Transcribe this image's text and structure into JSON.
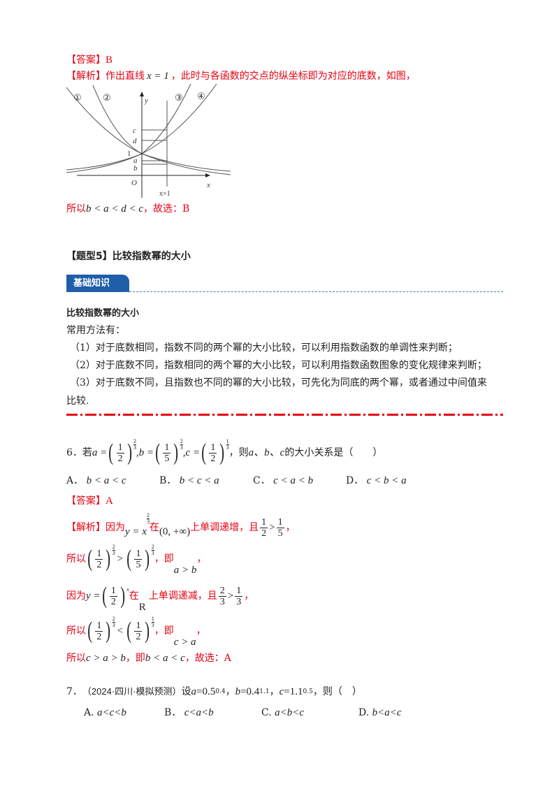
{
  "prev": {
    "answer_label": "【答案】",
    "answer": "B",
    "analysis_label": "【解析】",
    "analysis_pre": "作出直线",
    "line_eq": "x = 1",
    "analysis_post": "，此时与各函数的交点的纵坐标即为对应的底数，如图，",
    "graph": {
      "labels": [
        "①",
        "②",
        "③",
        "④"
      ],
      "y": "y",
      "x": "x",
      "o": "O",
      "one": "1",
      "c": "c",
      "d": "d",
      "a": "a",
      "b": "b",
      "xeq": "x=1"
    },
    "conclusion_pre": "所以",
    "conclusion_math": "b < a < d < c",
    "conclusion_post": "，故选：B"
  },
  "section": {
    "title": "【题型5】比较指数幂的大小",
    "banner": "基础知识"
  },
  "knowledge": {
    "heading": "比较指数幂的大小",
    "intro": "常用方法有：",
    "items": [
      "（1）对于底数相同，指数不同的两个幂的大小比较，可以利用指数函数的单调性来判断；",
      "（2）对于底数不同，指数相同的两个幂的大小比较，可以利用指数函数图象的变化规律来判断；",
      "（3）对于底数不同，且指数也不同的幂的大小比较，可先化为同底的两个幂，或者通过中间值来"
    ],
    "items_cont": "比较."
  },
  "q6": {
    "num": "6．若",
    "a": "a =",
    "b": ",b =",
    "c": ",c =",
    "post": "，则",
    "vars": "a、b、c",
    "post2": "的大小关系是（　　）",
    "options": [
      {
        "label": "A．",
        "text": "b < a < c"
      },
      {
        "label": "B．",
        "text": "b < c < a"
      },
      {
        "label": "C．",
        "text": "c < a < b"
      },
      {
        "label": "D．",
        "text": "c < b < a"
      }
    ],
    "answer_label": "【答案】",
    "answer": "A",
    "l1": {
      "label": "【解析】",
      "t1": "因为",
      "fn": "y = x",
      "t2": "在",
      "interval": "(0, +∞)",
      "t3": "上单调递增，且",
      "gt": ">",
      "end": "，"
    },
    "l2": {
      "t1": "所以",
      "gt": ">",
      "t2": "，即",
      "res": "a > b",
      "end": "，"
    },
    "l3": {
      "t1": "因为",
      "fn": "y =",
      "supx": "x",
      "t2": "在",
      "R": "R",
      "t3": "上单调递减，且",
      "gt": ">",
      "end": "，"
    },
    "l4": {
      "t1": "所以",
      "lt": "<",
      "t2": "，即",
      "res": "c > a",
      "end": "，"
    },
    "l5": {
      "t1": "所以",
      "m1": "c > a > b",
      "t2": "，即",
      "m2": "b < a < c",
      "t3": "，故选：A"
    },
    "nums": {
      "one": "1",
      "two": "2",
      "three": "3",
      "five": "5"
    }
  },
  "q7": {
    "num": "7．",
    "source": "（2024·四川·模拟预测）",
    "t1": "设",
    "a": "a",
    "av": "=0.5",
    "ae": "0.4",
    "b": "b",
    "bv": "=0.4",
    "be": "1.1",
    "c": "c",
    "cv": "=1.1",
    "ce": "0.5",
    "end": "，则（　）",
    "options": [
      {
        "label": "A.",
        "text": "a<c<b"
      },
      {
        "label": "B．",
        "text": "c<a<b"
      },
      {
        "label": "C.",
        "text": "a<b<c"
      },
      {
        "label": "D.",
        "text": "b<a<c"
      }
    ]
  },
  "colors": {
    "red": "#e60012",
    "banner": "#1f5ea8"
  }
}
